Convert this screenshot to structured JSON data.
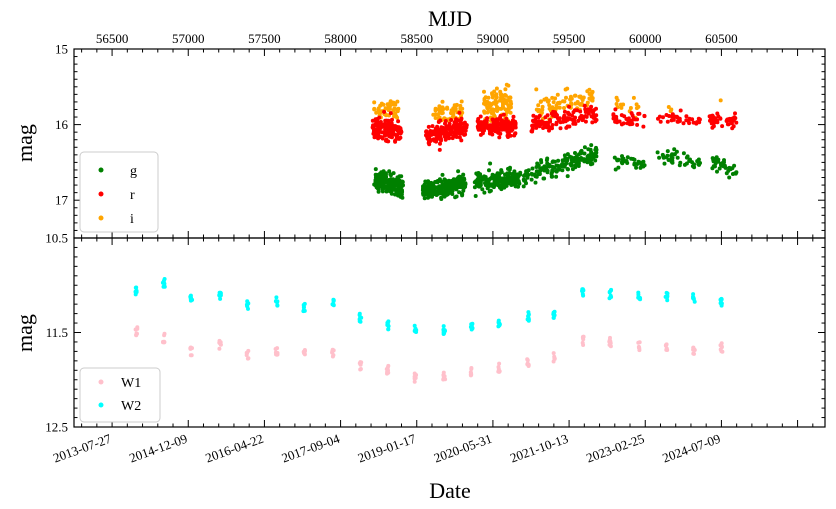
{
  "chart_data": [
    {
      "panel": "top",
      "type": "scatter",
      "title": "MJD",
      "xlabel_top": "MJD",
      "ylabel": "mag",
      "xlim_mjd": [
        56250,
        61180
      ],
      "ylim": [
        15,
        17.5
      ],
      "y_inverted": true,
      "yticks": [
        15,
        16,
        17
      ],
      "ytick_labels": [
        "15",
        "16",
        "17"
      ],
      "mjd_ticks": [
        56500,
        57000,
        57500,
        58000,
        58500,
        59000,
        59500,
        60000,
        60500
      ],
      "mjd_tick_labels": [
        "56500",
        "57000",
        "57500",
        "58000",
        "58500",
        "59000",
        "59500",
        "60000",
        "60500"
      ],
      "legend": {
        "location": "lower-left",
        "entries": [
          "g",
          "r",
          "i"
        ]
      },
      "series": [
        {
          "name": "i",
          "color": "#ffa500",
          "segments": [
            {
              "x0": 58220,
              "x1": 58380,
              "y0": 15.82,
              "y1": 15.82,
              "n": 45,
              "sd": 0.07
            },
            {
              "x0": 58600,
              "x1": 58800,
              "y0": 15.85,
              "y1": 15.83,
              "n": 55,
              "sd": 0.06
            },
            {
              "x0": 58940,
              "x1": 59120,
              "y0": 15.75,
              "y1": 15.75,
              "n": 110,
              "sd": 0.12
            },
            {
              "x0": 59280,
              "x1": 59680,
              "y0": 15.78,
              "y1": 15.63,
              "n": 80,
              "sd": 0.07
            },
            {
              "x0": 59800,
              "x1": 59960,
              "y0": 15.72,
              "y1": 15.78,
              "n": 14,
              "sd": 0.05
            },
            {
              "x0": 60150,
              "x1": 60180,
              "y0": 15.78,
              "y1": 15.8,
              "n": 3,
              "sd": 0.02
            },
            {
              "x0": 60490,
              "x1": 60500,
              "y0": 15.68,
              "y1": 15.68,
              "n": 1,
              "sd": 0.0
            }
          ]
        },
        {
          "name": "r",
          "color": "#ff0000",
          "segments": [
            {
              "x0": 58210,
              "x1": 58400,
              "y0": 16.05,
              "y1": 16.1,
              "n": 140,
              "sd": 0.07
            },
            {
              "x0": 58560,
              "x1": 58830,
              "y0": 16.15,
              "y1": 16.02,
              "n": 180,
              "sd": 0.07
            },
            {
              "x0": 58900,
              "x1": 59150,
              "y0": 16.02,
              "y1": 16.0,
              "n": 170,
              "sd": 0.06
            },
            {
              "x0": 59250,
              "x1": 59680,
              "y0": 16.0,
              "y1": 15.85,
              "n": 130,
              "sd": 0.07
            },
            {
              "x0": 59790,
              "x1": 60000,
              "y0": 15.92,
              "y1": 15.96,
              "n": 35,
              "sd": 0.05
            },
            {
              "x0": 60080,
              "x1": 60360,
              "y0": 15.9,
              "y1": 15.95,
              "n": 35,
              "sd": 0.04
            },
            {
              "x0": 60420,
              "x1": 60600,
              "y0": 15.92,
              "y1": 15.95,
              "n": 45,
              "sd": 0.05
            }
          ]
        },
        {
          "name": "g",
          "color": "#008000",
          "segments": [
            {
              "x0": 58220,
              "x1": 58410,
              "y0": 16.75,
              "y1": 16.82,
              "n": 170,
              "sd": 0.07
            },
            {
              "x0": 58540,
              "x1": 58820,
              "y0": 16.88,
              "y1": 16.78,
              "n": 220,
              "sd": 0.06
            },
            {
              "x0": 58880,
              "x1": 59180,
              "y0": 16.75,
              "y1": 16.72,
              "n": 170,
              "sd": 0.06
            },
            {
              "x0": 59200,
              "x1": 59680,
              "y0": 16.7,
              "y1": 16.4,
              "n": 170,
              "sd": 0.06
            },
            {
              "x0": 59790,
              "x1": 60000,
              "y0": 16.45,
              "y1": 16.55,
              "n": 30,
              "sd": 0.04
            },
            {
              "x0": 60080,
              "x1": 60360,
              "y0": 16.42,
              "y1": 16.5,
              "n": 40,
              "sd": 0.04
            },
            {
              "x0": 60440,
              "x1": 60600,
              "y0": 16.5,
              "y1": 16.6,
              "n": 35,
              "sd": 0.05
            }
          ]
        }
      ]
    },
    {
      "panel": "bottom",
      "type": "scatter",
      "xlabel": "Date",
      "ylabel": "mag",
      "xlim_mjd": [
        56250,
        61180
      ],
      "ylim": [
        10.5,
        12.5
      ],
      "y_inverted": true,
      "yticks": [
        10.5,
        11.5,
        12.5
      ],
      "ytick_labels": [
        "10.5",
        "11.5",
        "12.5"
      ],
      "date_ticks_mjd": [
        56500,
        57000,
        57500,
        58000,
        58500,
        59000,
        59500,
        60000,
        60500
      ],
      "date_tick_labels": [
        "2013-07-27",
        "2014-12-09",
        "2016-04-22",
        "2017-09-04",
        "2019-01-17",
        "2020-05-31",
        "2021-10-13",
        "2023-02-25",
        "2024-07-09"
      ],
      "legend": {
        "location": "lower-left",
        "entries": [
          "W1",
          "W2"
        ]
      },
      "series": [
        {
          "name": "W2",
          "color": "#00ffff",
          "epochs_mjd": [
            56660,
            56840,
            57020,
            57210,
            57390,
            57580,
            57760,
            57950,
            58130,
            58310,
            58490,
            58680,
            58860,
            59040,
            59230,
            59400,
            59590,
            59770,
            59960,
            60140,
            60320,
            60500
          ],
          "values": [
            11.05,
            10.98,
            11.15,
            11.12,
            11.21,
            11.17,
            11.23,
            11.17,
            11.34,
            11.42,
            11.47,
            11.48,
            11.44,
            11.4,
            11.33,
            11.32,
            11.07,
            11.09,
            11.12,
            11.12,
            11.14,
            11.18
          ]
        },
        {
          "name": "W1",
          "color": "#ffc0cb",
          "epochs_mjd": [
            56660,
            56840,
            57020,
            57210,
            57390,
            57580,
            57760,
            57950,
            58130,
            58310,
            58490,
            58680,
            58860,
            59040,
            59230,
            59400,
            59590,
            59770,
            59960,
            60140,
            60320,
            60500
          ],
          "values": [
            11.49,
            11.56,
            11.7,
            11.63,
            11.74,
            11.69,
            11.73,
            11.71,
            11.86,
            11.9,
            11.98,
            11.96,
            11.91,
            11.87,
            11.81,
            11.76,
            11.59,
            11.6,
            11.64,
            11.64,
            11.68,
            11.66
          ]
        }
      ]
    }
  ]
}
